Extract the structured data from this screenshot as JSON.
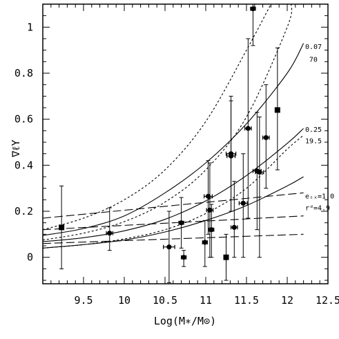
{
  "chart_data": {
    "type": "scatter",
    "xlabel": "Log(M∗/M⊙)",
    "ylabel": "∇ℓΥ",
    "xlim": [
      9.0,
      12.5
    ],
    "ylim": [
      -0.115,
      1.1
    ],
    "xticks": [
      9.5,
      10,
      10.5,
      11,
      11.5,
      12,
      12.5
    ],
    "xtick_labels": [
      "9.5",
      "10",
      "10.5",
      "11",
      "11.5",
      "12",
      "12.5"
    ],
    "yticks": [
      0,
      0.2,
      0.4,
      0.6,
      0.8,
      1
    ],
    "ytick_labels": [
      "0",
      "0.2",
      "0.4",
      "0.6",
      "0.8",
      "1"
    ],
    "grid": false,
    "points": [
      {
        "x": 9.23,
        "y": 0.13,
        "ylo": -0.05,
        "yhi": 0.31,
        "xerr": 0,
        "marker": "square"
      },
      {
        "x": 9.82,
        "y": 0.105,
        "ylo": 0.03,
        "yhi": 0.215,
        "xerr": 0.04,
        "marker": "circle"
      },
      {
        "x": 10.55,
        "y": 0.045,
        "ylo": -0.11,
        "yhi": 0.2,
        "xerr": 0.07,
        "marker": "circle"
      },
      {
        "x": 10.7,
        "y": 0.15,
        "ylo": 0.04,
        "yhi": 0.26,
        "xerr": 0.03,
        "marker": "circle"
      },
      {
        "x": 10.73,
        "y": 0.0,
        "ylo": -0.04,
        "yhi": 0.03,
        "xerr": 0.03,
        "marker": "circle"
      },
      {
        "x": 10.99,
        "y": 0.065,
        "ylo": -0.04,
        "yhi": 0.16,
        "xerr": 0.03,
        "marker": "circle"
      },
      {
        "x": 11.03,
        "y": 0.265,
        "ylo": 0.1,
        "yhi": 0.42,
        "xerr": 0.05,
        "marker": "circle"
      },
      {
        "x": 11.05,
        "y": 0.205,
        "ylo": 0.0,
        "yhi": 0.41,
        "xerr": 0.04,
        "marker": "circle"
      },
      {
        "x": 11.07,
        "y": 0.12,
        "ylo": 0.0,
        "yhi": 0.23,
        "xerr": 0.03,
        "marker": "circle"
      },
      {
        "x": 11.25,
        "y": 0.0,
        "ylo": -0.1,
        "yhi": 0.1,
        "xerr": 0,
        "marker": "square"
      },
      {
        "x": 11.31,
        "y": 0.45,
        "ylo": 0.2,
        "yhi": 0.7,
        "xerr": 0.06,
        "marker": "circle"
      },
      {
        "x": 11.31,
        "y": 0.44,
        "ylo": 0.2,
        "yhi": 0.68,
        "xerr": 0.05,
        "marker": "circle"
      },
      {
        "x": 11.35,
        "y": 0.13,
        "ylo": 0.0,
        "yhi": 0.33,
        "xerr": 0.04,
        "marker": "circle"
      },
      {
        "x": 11.46,
        "y": 0.235,
        "ylo": 0.0,
        "yhi": 0.45,
        "xerr": 0.05,
        "marker": "circle"
      },
      {
        "x": 11.52,
        "y": 0.56,
        "ylo": 0.17,
        "yhi": 0.95,
        "xerr": 0.04,
        "marker": "circle"
      },
      {
        "x": 11.58,
        "y": 1.08,
        "ylo": 0.92,
        "yhi": 1.1,
        "xerr": 0.03,
        "marker": "circle"
      },
      {
        "x": 11.63,
        "y": 0.375,
        "ylo": 0.12,
        "yhi": 0.63,
        "xerr": 0.05,
        "marker": "circle"
      },
      {
        "x": 11.66,
        "y": 0.37,
        "ylo": 0.0,
        "yhi": 0.61,
        "xerr": 0.05,
        "marker": "circle"
      },
      {
        "x": 11.74,
        "y": 0.52,
        "ylo": 0.3,
        "yhi": 0.75,
        "xerr": 0.04,
        "marker": "circle"
      },
      {
        "x": 11.88,
        "y": 0.64,
        "ylo": 0.38,
        "yhi": 0.91,
        "xerr": 0,
        "marker": "square"
      }
    ],
    "curves": [
      {
        "style": "solid",
        "x": [
          9.0,
          9.5,
          10.0,
          10.5,
          11.0,
          11.5,
          12.0,
          12.2
        ],
        "y": [
          0.095,
          0.125,
          0.18,
          0.28,
          0.41,
          0.58,
          0.8,
          0.93
        ]
      },
      {
        "style": "solid",
        "x": [
          9.0,
          9.5,
          10.0,
          10.5,
          11.0,
          11.5,
          12.0,
          12.2
        ],
        "y": [
          0.068,
          0.085,
          0.115,
          0.165,
          0.245,
          0.355,
          0.495,
          0.56
        ]
      },
      {
        "style": "solid",
        "x": [
          9.0,
          9.5,
          10.0,
          10.5,
          11.0,
          11.5,
          12.0,
          12.2
        ],
        "y": [
          0.04,
          0.055,
          0.075,
          0.11,
          0.16,
          0.225,
          0.31,
          0.35
        ]
      },
      {
        "style": "dotted",
        "x": [
          9.0,
          9.5,
          10.0,
          10.5,
          11.0,
          11.5,
          11.8
        ],
        "y": [
          0.12,
          0.17,
          0.25,
          0.38,
          0.59,
          0.9,
          1.1
        ]
      },
      {
        "style": "dotted",
        "x": [
          9.0,
          9.5,
          10.0,
          10.5,
          11.0,
          11.5,
          12.0,
          12.05
        ],
        "y": [
          0.075,
          0.105,
          0.155,
          0.24,
          0.38,
          0.61,
          1.0,
          1.1
        ]
      },
      {
        "style": "dotted",
        "x": [
          9.0,
          9.5,
          10.0,
          10.5,
          11.0,
          11.5,
          12.0,
          12.2
        ],
        "y": [
          0.04,
          0.055,
          0.08,
          0.12,
          0.19,
          0.3,
          0.47,
          0.53
        ]
      },
      {
        "style": "dashed",
        "x": [
          9.0,
          12.2
        ],
        "y": [
          0.17,
          0.28
        ]
      },
      {
        "style": "dashed",
        "x": [
          9.0,
          12.2
        ],
        "y": [
          0.12,
          0.18
        ]
      },
      {
        "style": "dashed",
        "x": [
          9.0,
          12.2
        ],
        "y": [
          0.06,
          0.1
        ]
      }
    ],
    "annotations": [
      {
        "text": "0.07",
        "x": 12.22,
        "y": 0.905
      },
      {
        "text": "70",
        "x": 12.27,
        "y": 0.85
      },
      {
        "text": "0.25",
        "x": 12.22,
        "y": 0.545
      },
      {
        "text": "19.5",
        "x": 12.22,
        "y": 0.495
      },
      {
        "text": "eₛₓ=1.0",
        "x": 12.22,
        "y": 0.255
      },
      {
        "text": "rᵈ=4.9",
        "x": 12.22,
        "y": 0.205
      }
    ]
  }
}
